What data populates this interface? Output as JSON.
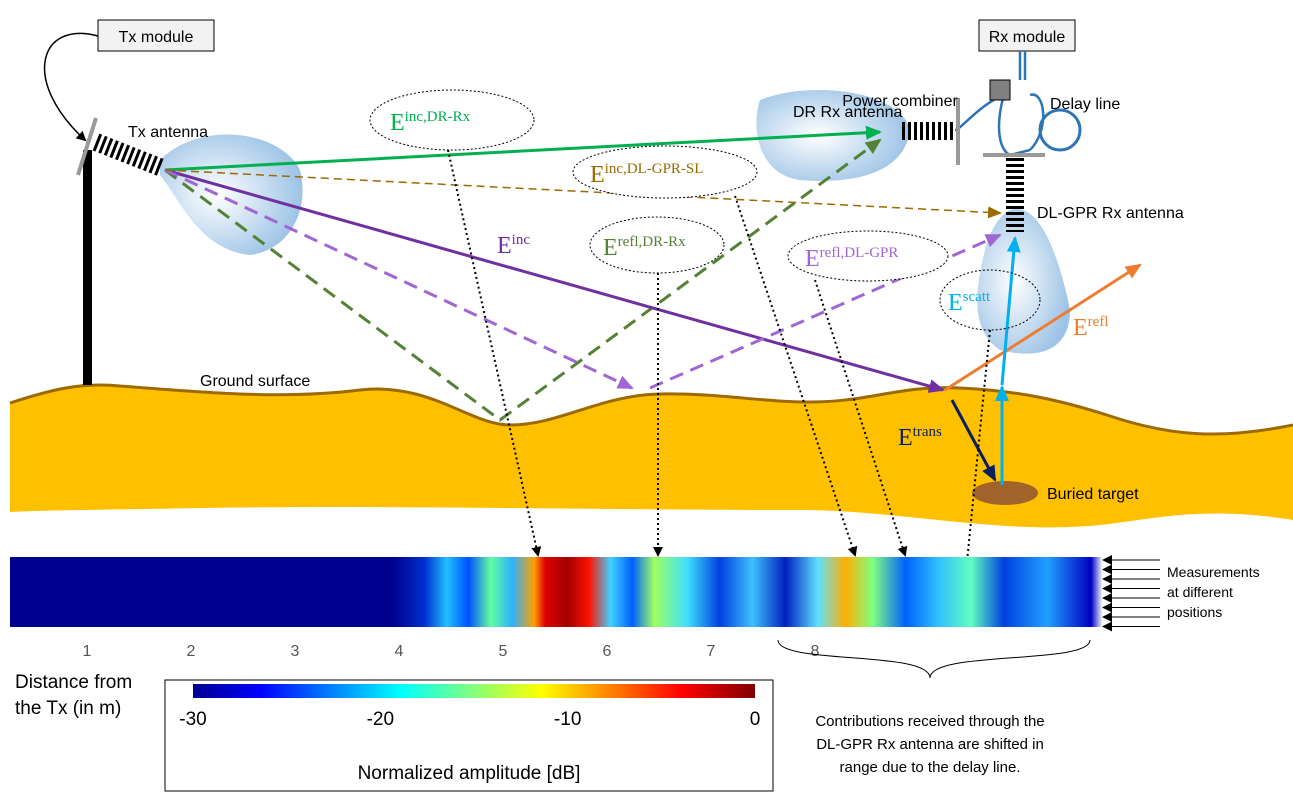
{
  "modules": {
    "tx": "Tx module",
    "rx": "Rx module"
  },
  "labels": {
    "tx_antenna": "Tx antenna",
    "power_combiner": "Power combiner",
    "delay_line": "Delay line",
    "dr_rx_antenna": "DR Rx antenna",
    "dl_gpr_rx_antenna": "DL-GPR Rx antenna",
    "ground_surface": "Ground surface",
    "buried_target": "Buried target"
  },
  "fields": {
    "inc_dr_rx": {
      "base": "E",
      "sup": "inc,DR-Rx"
    },
    "inc_dl_gpr_sl": {
      "base": "E",
      "sup": "inc,DL-GPR-SL"
    },
    "refl_dr_rx": {
      "base": "E",
      "sup": "refl,DR-Rx"
    },
    "refl_dl_gpr": {
      "base": "E",
      "sup": "refl,DL-GPR"
    },
    "scatt": {
      "base": "E",
      "sup": "scatt"
    },
    "inc": {
      "base": "E",
      "sup": "inc"
    },
    "refl": {
      "base": "E",
      "sup": "refl"
    },
    "trans": {
      "base": "E",
      "sup": "trans"
    }
  },
  "measurements": [
    "Measurements",
    "at different",
    "positions"
  ],
  "distance_axis": {
    "ticks": [
      1,
      2,
      3,
      4,
      5,
      6,
      7,
      8
    ],
    "label": [
      "Distance from",
      "the Tx (in m)"
    ]
  },
  "colorbar": {
    "ticks": [
      -30,
      -20,
      -10,
      0
    ],
    "label": "Normalized amplitude [dB]"
  },
  "note": [
    "Contributions received through the",
    "DL-GPR Rx antenna are shifted in",
    "range due to the delay line."
  ]
}
